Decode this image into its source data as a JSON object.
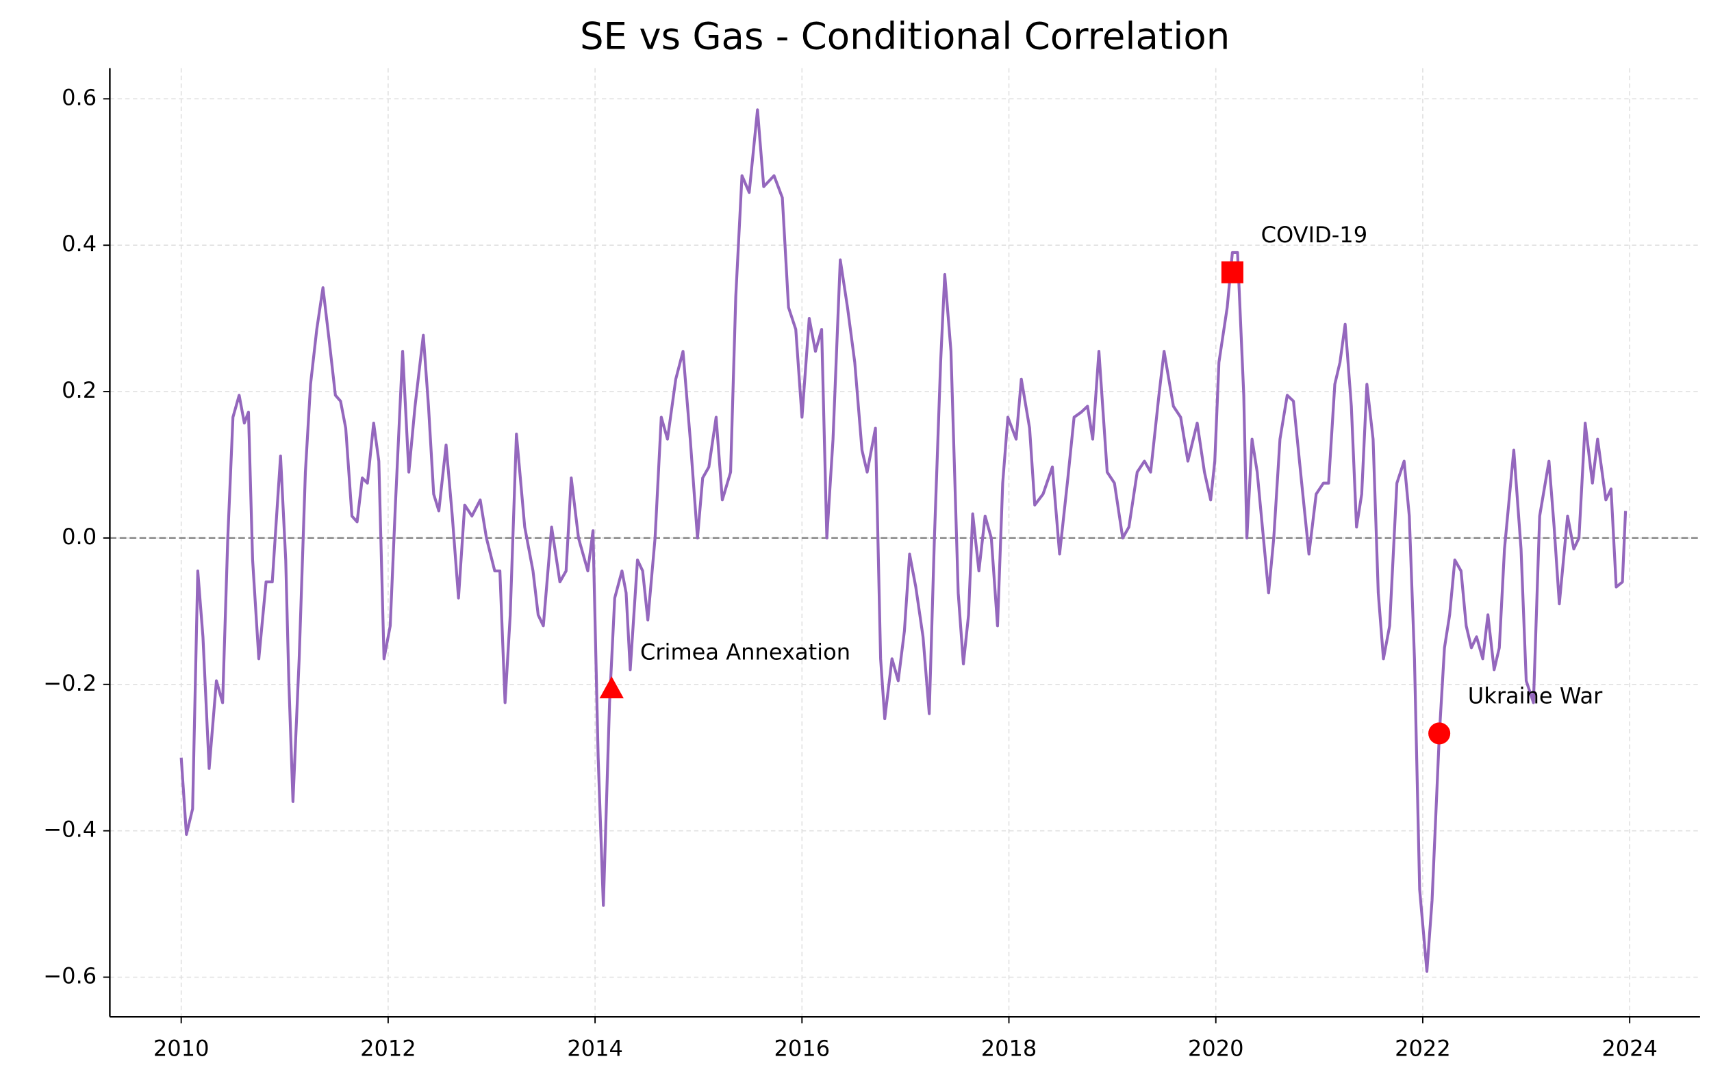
{
  "chart_data": {
    "type": "line",
    "title": "SE vs Gas - Conditional Correlation",
    "color": "#9467bd",
    "grid": true,
    "zero_line": true,
    "xlim": [
      2009.31,
      2024.68
    ],
    "ylim": [
      -0.654,
      0.642
    ],
    "xticks": [
      2010,
      2012,
      2014,
      2016,
      2018,
      2020,
      2022,
      2024
    ],
    "yticks": [
      {
        "value": -0.6,
        "label": "−0.6"
      },
      {
        "value": -0.4,
        "label": "−0.4"
      },
      {
        "value": -0.2,
        "label": "−0.2"
      },
      {
        "value": 0,
        "label": "0.0"
      },
      0.2,
      0.4,
      0.6
    ],
    "x": [
      2010.0,
      2010.05,
      2010.11,
      2010.16,
      2010.21,
      2010.27,
      2010.34,
      2010.4,
      2010.45,
      2010.5,
      2010.56,
      2010.61,
      2010.65,
      2010.69,
      2010.75,
      2010.82,
      2010.88,
      2010.96,
      2011.01,
      2011.04,
      2011.08,
      2011.14,
      2011.2,
      2011.25,
      2011.31,
      2011.37,
      2011.43,
      2011.49,
      2011.54,
      2011.59,
      2011.65,
      2011.7,
      2011.75,
      2011.8,
      2011.86,
      2011.91,
      2011.96,
      2012.02,
      2012.07,
      2012.14,
      2012.2,
      2012.26,
      2012.34,
      2012.39,
      2012.44,
      2012.49,
      2012.56,
      2012.62,
      2012.68,
      2012.74,
      2012.81,
      2012.89,
      2012.95,
      2013.03,
      2013.08,
      2013.13,
      2013.18,
      2013.24,
      2013.32,
      2013.4,
      2013.45,
      2013.5,
      2013.58,
      2013.66,
      2013.72,
      2013.77,
      2013.84,
      2013.93,
      2013.98,
      2014.03,
      2014.08,
      2014.14,
      2014.19,
      2014.26,
      2014.3,
      2014.34,
      2014.41,
      2014.46,
      2014.51,
      2014.58,
      2014.64,
      2014.7,
      2014.78,
      2014.85,
      2014.92,
      2014.99,
      2015.04,
      2015.1,
      2015.17,
      2015.23,
      2015.31,
      2015.36,
      2015.42,
      2015.49,
      2015.57,
      2015.63,
      2015.73,
      2015.81,
      2015.87,
      2015.94,
      2016.0,
      2016.07,
      2016.13,
      2016.19,
      2016.24,
      2016.3,
      2016.37,
      2016.44,
      2016.51,
      2016.58,
      2016.63,
      2016.71,
      2016.76,
      2016.8,
      2016.87,
      2016.93,
      2016.99,
      2017.04,
      2017.1,
      2017.17,
      2017.23,
      2017.28,
      2017.34,
      2017.38,
      2017.44,
      2017.51,
      2017.56,
      2017.61,
      2017.65,
      2017.71,
      2017.77,
      2017.83,
      2017.89,
      2017.94,
      2017.99,
      2018.07,
      2018.12,
      2018.2,
      2018.25,
      2018.33,
      2018.42,
      2018.49,
      2018.57,
      2018.63,
      2018.7,
      2018.76,
      2018.81,
      2018.87,
      2018.95,
      2019.02,
      2019.1,
      2019.16,
      2019.24,
      2019.31,
      2019.37,
      2019.45,
      2019.5,
      2019.59,
      2019.66,
      2019.73,
      2019.82,
      2019.89,
      2019.95,
      2019.99,
      2020.03,
      2020.11,
      2020.16,
      2020.21,
      2020.27,
      2020.3,
      2020.35,
      2020.4,
      2020.46,
      2020.51,
      2020.56,
      2020.62,
      2020.69,
      2020.75,
      2020.83,
      2020.9,
      2020.97,
      2021.04,
      2021.09,
      2021.15,
      2021.2,
      2021.25,
      2021.31,
      2021.36,
      2021.41,
      2021.46,
      2021.52,
      2021.57,
      2021.62,
      2021.68,
      2021.75,
      2021.82,
      2021.87,
      2021.92,
      2021.97,
      2022.04,
      2022.09,
      2022.16,
      2022.21,
      2022.26,
      2022.31,
      2022.37,
      2022.42,
      2022.47,
      2022.52,
      2022.58,
      2022.63,
      2022.69,
      2022.74,
      2022.79,
      2022.88,
      2022.95,
      2023.0,
      2023.07,
      2023.13,
      2023.22,
      2023.27,
      2023.32,
      2023.4,
      2023.46,
      2023.51,
      2023.57,
      2023.64,
      2023.69,
      2023.77,
      2023.82,
      2023.87,
      2023.93,
      2023.96
    ],
    "values": [
      -0.3,
      -0.405,
      -0.37,
      -0.045,
      -0.135,
      -0.315,
      -0.195,
      -0.225,
      0,
      0.165,
      0.195,
      0.157,
      0.172,
      -0.03,
      -0.165,
      -0.06,
      -0.06,
      0.112,
      -0.03,
      -0.195,
      -0.36,
      -0.165,
      0.09,
      0.21,
      0.285,
      0.342,
      0.27,
      0.195,
      0.187,
      0.15,
      0.03,
      0.022,
      0.082,
      0.075,
      0.157,
      0.105,
      -0.165,
      -0.12,
      0.045,
      0.255,
      0.09,
      0.18,
      0.277,
      0.18,
      0.06,
      0.037,
      0.127,
      0.03,
      -0.082,
      0.045,
      0.03,
      0.052,
      0,
      -0.045,
      -0.045,
      -0.225,
      -0.105,
      0.142,
      0.015,
      -0.045,
      -0.105,
      -0.12,
      0.015,
      -0.06,
      -0.045,
      0.082,
      0,
      -0.045,
      0.01,
      -0.3,
      -0.502,
      -0.225,
      -0.082,
      -0.045,
      -0.075,
      -0.18,
      -0.03,
      -0.045,
      -0.112,
      0,
      0.165,
      0.135,
      0.217,
      0.255,
      0.135,
      0,
      0.082,
      0.097,
      0.165,
      0.052,
      0.09,
      0.33,
      0.495,
      0.472,
      0.585,
      0.48,
      0.495,
      0.465,
      0.315,
      0.285,
      0.165,
      0.3,
      0.255,
      0.285,
      0,
      0.135,
      0.38,
      0.315,
      0.24,
      0.12,
      0.09,
      0.15,
      -0.165,
      -0.247,
      -0.165,
      -0.195,
      -0.127,
      -0.022,
      -0.067,
      -0.135,
      -0.24,
      0,
      0.24,
      0.36,
      0.255,
      -0.075,
      -0.172,
      -0.105,
      0.033,
      -0.045,
      0.03,
      0,
      -0.12,
      0.075,
      0.165,
      0.135,
      0.217,
      0.15,
      0.045,
      0.06,
      0.097,
      -0.022,
      0.082,
      0.165,
      0.172,
      0.18,
      0.135,
      0.255,
      0.09,
      0.075,
      0,
      0.015,
      0.09,
      0.105,
      0.09,
      0.195,
      0.255,
      0.18,
      0.165,
      0.105,
      0.157,
      0.09,
      0.052,
      0.105,
      0.24,
      0.315,
      0.39,
      0.39,
      0.195,
      0,
      0.135,
      0.09,
      0,
      -0.075,
      0,
      0.135,
      0.195,
      0.187,
      0.075,
      -0.022,
      0.06,
      0.075,
      0.075,
      0.21,
      0.24,
      0.292,
      0.18,
      0.015,
      0.06,
      0.21,
      0.135,
      -0.075,
      -0.165,
      -0.12,
      0.075,
      0.105,
      0.03,
      -0.165,
      -0.48,
      -0.592,
      -0.495,
      -0.27,
      -0.15,
      -0.105,
      -0.03,
      -0.045,
      -0.12,
      -0.15,
      -0.135,
      -0.165,
      -0.105,
      -0.18,
      -0.15,
      -0.015,
      0.12,
      -0.015,
      -0.195,
      -0.225,
      0.03,
      0.105,
      0.015,
      -0.09,
      0.03,
      -0.015,
      0,
      0.157,
      0.075,
      0.135,
      0.052,
      0.067,
      -0.067,
      -0.06,
      0.037
    ],
    "annotations": [
      {
        "label": "Crimea Annexation",
        "x": 2014.16,
        "y": -0.207,
        "marker": "triangle",
        "color": "#ff0000"
      },
      {
        "label": "COVID-19",
        "x": 2020.16,
        "y": 0.363,
        "marker": "square",
        "color": "#ff0000"
      },
      {
        "label": "Ukraine War",
        "x": 2022.16,
        "y": -0.267,
        "marker": "circle",
        "color": "#ff0000"
      }
    ]
  }
}
